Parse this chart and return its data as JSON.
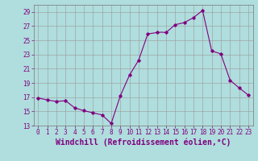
{
  "x_full": [
    0,
    0.5,
    1,
    1.5,
    2,
    2.5,
    3,
    3.5,
    4,
    4.5,
    5,
    5.5,
    6,
    6.5,
    7,
    7.5,
    8,
    8.5,
    9,
    9.5,
    10,
    10.5,
    11,
    11.5,
    12,
    12.5,
    13,
    13.5,
    14,
    14.5,
    15,
    15.5,
    16,
    16.5,
    17,
    17.5,
    18,
    18.5,
    19,
    19.5,
    20,
    20.5,
    21,
    21.5,
    22,
    22.5,
    23
  ],
  "y_full": [
    16.9,
    16.75,
    16.6,
    16.5,
    16.4,
    16.45,
    16.5,
    16.0,
    15.5,
    15.3,
    15.1,
    14.95,
    14.8,
    14.65,
    14.5,
    13.9,
    13.3,
    15.25,
    17.2,
    18.65,
    20.1,
    21.15,
    22.2,
    24.05,
    25.9,
    26.0,
    26.1,
    26.15,
    26.1,
    26.65,
    27.2,
    27.35,
    27.5,
    27.85,
    28.2,
    28.7,
    29.2,
    26.35,
    23.5,
    23.3,
    23.1,
    21.25,
    19.4,
    18.85,
    18.3,
    17.8,
    17.3
  ],
  "marker_x": [
    0,
    1,
    2,
    3,
    4,
    5,
    6,
    7,
    8,
    9,
    10,
    11,
    12,
    13,
    14,
    15,
    16,
    17,
    18,
    19,
    20,
    21,
    22,
    23
  ],
  "marker_y": [
    16.9,
    16.6,
    16.4,
    16.5,
    15.5,
    15.1,
    14.8,
    14.5,
    13.3,
    17.2,
    20.1,
    22.2,
    25.9,
    26.1,
    26.1,
    27.2,
    27.5,
    28.2,
    29.2,
    23.5,
    23.1,
    19.4,
    18.3,
    17.3
  ],
  "line_color": "#800080",
  "marker_color": "#800080",
  "bg_color": "#b0dddd",
  "grid_color": "#999999",
  "xlabel": "Windchill (Refroidissement éolien,°C)",
  "xtick_labels": [
    "0",
    "1",
    "2",
    "3",
    "4",
    "5",
    "6",
    "7",
    "8",
    "9",
    "10",
    "11",
    "12",
    "13",
    "14",
    "15",
    "16",
    "17",
    "18",
    "19",
    "20",
    "21",
    "22",
    "23"
  ],
  "ytick_labels": [
    "13",
    "15",
    "17",
    "19",
    "21",
    "23",
    "25",
    "27",
    "29"
  ],
  "yticks": [
    13,
    15,
    17,
    19,
    21,
    23,
    25,
    27,
    29
  ],
  "ylim": [
    13,
    30
  ],
  "xlim": [
    -0.5,
    23.5
  ],
  "xlabel_fontsize": 7,
  "tick_fontsize": 5.5
}
